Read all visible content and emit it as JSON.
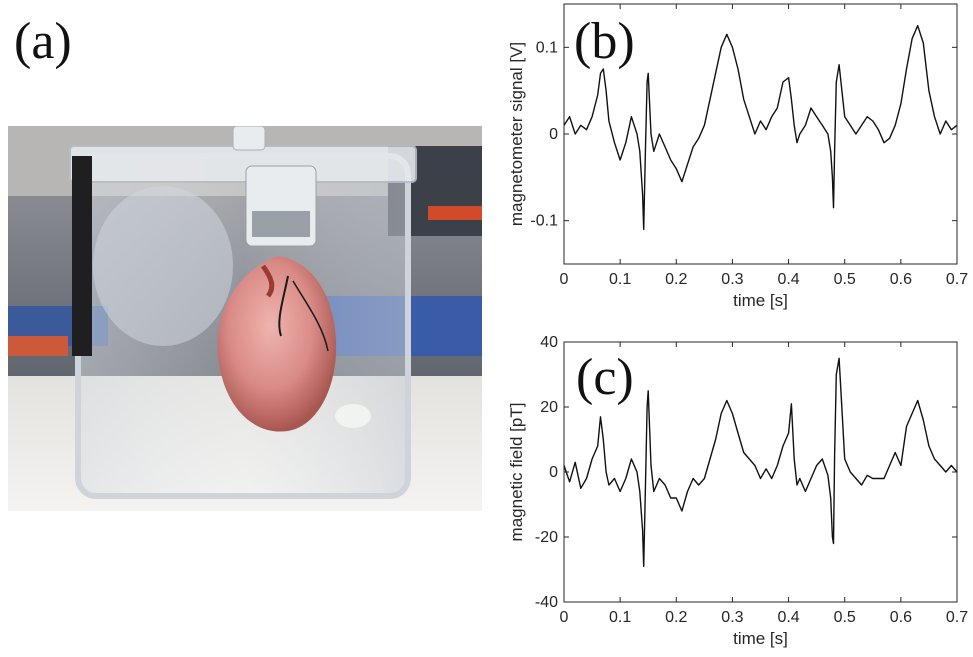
{
  "panels": {
    "a": "(a)",
    "b": "(b)",
    "c": "(c)"
  },
  "chart_data": [
    {
      "id": "b",
      "type": "line",
      "title": "",
      "xlabel": "time [s]",
      "ylabel": "magnetometer signal [V]",
      "xlim": [
        0,
        0.7
      ],
      "ylim": [
        -0.15,
        0.15
      ],
      "xticks": [
        0,
        0.1,
        0.2,
        0.3,
        0.4,
        0.5,
        0.6,
        0.7
      ],
      "xtick_labels": [
        "0",
        "0.1",
        "0.2",
        "0.3",
        "0.4",
        "0.5",
        "0.6",
        "0.7"
      ],
      "yticks": [
        -0.1,
        0,
        0.1
      ],
      "ytick_labels": [
        "-0.1",
        "0",
        "0.1"
      ],
      "grid": false,
      "line_color": "#111111",
      "series": [
        {
          "x": [
            0,
            0.01,
            0.02,
            0.03,
            0.04,
            0.05,
            0.06,
            0.065,
            0.07,
            0.075,
            0.08,
            0.09,
            0.1,
            0.11,
            0.12,
            0.13,
            0.135,
            0.14,
            0.142,
            0.145,
            0.148,
            0.15,
            0.155,
            0.16,
            0.17,
            0.18,
            0.19,
            0.2,
            0.21,
            0.22,
            0.23,
            0.24,
            0.25,
            0.26,
            0.27,
            0.28,
            0.29,
            0.3,
            0.31,
            0.32,
            0.33,
            0.34,
            0.35,
            0.36,
            0.37,
            0.38,
            0.39,
            0.4,
            0.405,
            0.41,
            0.415,
            0.42,
            0.43,
            0.44,
            0.45,
            0.46,
            0.47,
            0.475,
            0.478,
            0.48,
            0.482,
            0.485,
            0.49,
            0.5,
            0.51,
            0.52,
            0.53,
            0.54,
            0.55,
            0.56,
            0.57,
            0.58,
            0.59,
            0.6,
            0.61,
            0.62,
            0.63,
            0.64,
            0.65,
            0.66,
            0.67,
            0.68,
            0.69,
            0.7
          ],
          "y": [
            0.01,
            0.02,
            0.0,
            0.01,
            0.005,
            0.02,
            0.045,
            0.07,
            0.075,
            0.05,
            0.015,
            -0.01,
            -0.03,
            -0.01,
            0.02,
            0.0,
            -0.02,
            -0.07,
            -0.11,
            -0.02,
            0.06,
            0.07,
            0.0,
            -0.02,
            0.0,
            -0.015,
            -0.03,
            -0.04,
            -0.055,
            -0.035,
            -0.015,
            -0.005,
            0.01,
            0.04,
            0.07,
            0.1,
            0.115,
            0.1,
            0.075,
            0.04,
            0.02,
            0.0,
            0.015,
            0.005,
            0.02,
            0.03,
            0.06,
            0.065,
            0.04,
            0.01,
            -0.01,
            0.0,
            0.01,
            0.03,
            0.02,
            0.01,
            0.0,
            -0.02,
            -0.05,
            -0.085,
            -0.02,
            0.06,
            0.08,
            0.02,
            0.01,
            0.0,
            0.01,
            0.02,
            0.015,
            0.005,
            -0.01,
            -0.005,
            0.01,
            0.035,
            0.075,
            0.11,
            0.125,
            0.105,
            0.05,
            0.02,
            0.0,
            0.015,
            0.005,
            0.01
          ]
        }
      ]
    },
    {
      "id": "c",
      "type": "line",
      "title": "",
      "xlabel": "time [s]",
      "ylabel": "magnetic field [pT]",
      "xlim": [
        0,
        0.7
      ],
      "ylim": [
        -40,
        40
      ],
      "xticks": [
        0,
        0.1,
        0.2,
        0.3,
        0.4,
        0.5,
        0.6,
        0.7
      ],
      "xtick_labels": [
        "0",
        "0.1",
        "0.2",
        "0.3",
        "0.4",
        "0.5",
        "0.6",
        "0.7"
      ],
      "yticks": [
        -40,
        -20,
        0,
        20,
        40
      ],
      "ytick_labels": [
        "-40",
        "-20",
        "0",
        "20",
        "40"
      ],
      "grid": false,
      "line_color": "#111111",
      "series": [
        {
          "x": [
            0,
            0.01,
            0.02,
            0.03,
            0.04,
            0.05,
            0.06,
            0.065,
            0.07,
            0.075,
            0.08,
            0.09,
            0.1,
            0.11,
            0.12,
            0.13,
            0.135,
            0.14,
            0.142,
            0.145,
            0.148,
            0.15,
            0.155,
            0.16,
            0.17,
            0.18,
            0.19,
            0.2,
            0.21,
            0.22,
            0.23,
            0.24,
            0.25,
            0.26,
            0.27,
            0.28,
            0.29,
            0.3,
            0.31,
            0.32,
            0.33,
            0.34,
            0.35,
            0.36,
            0.37,
            0.38,
            0.39,
            0.4,
            0.405,
            0.41,
            0.415,
            0.42,
            0.43,
            0.44,
            0.45,
            0.46,
            0.47,
            0.475,
            0.478,
            0.48,
            0.482,
            0.485,
            0.49,
            0.5,
            0.51,
            0.52,
            0.53,
            0.54,
            0.55,
            0.56,
            0.57,
            0.58,
            0.59,
            0.6,
            0.61,
            0.62,
            0.63,
            0.64,
            0.65,
            0.66,
            0.67,
            0.68,
            0.69,
            0.7
          ],
          "y": [
            2,
            -3,
            3,
            -5,
            -2,
            4,
            8,
            17,
            10,
            0,
            -4,
            -2,
            -6,
            -2,
            4,
            0,
            -6,
            -18,
            -29,
            -5,
            20,
            25,
            2,
            -6,
            -2,
            -4,
            -8,
            -8,
            -12,
            -6,
            -2,
            -4,
            -2,
            4,
            10,
            18,
            22,
            18,
            12,
            6,
            4,
            2,
            -2,
            1,
            -2,
            2,
            8,
            12,
            21,
            4,
            -4,
            -2,
            -6,
            -2,
            2,
            4,
            -1,
            -8,
            -20,
            -22,
            5,
            30,
            35,
            4,
            0,
            -2,
            -4,
            -1,
            -2,
            -2,
            -2,
            2,
            6,
            2,
            14,
            18,
            22,
            16,
            8,
            4,
            2,
            0,
            2,
            0
          ]
        }
      ]
    }
  ]
}
